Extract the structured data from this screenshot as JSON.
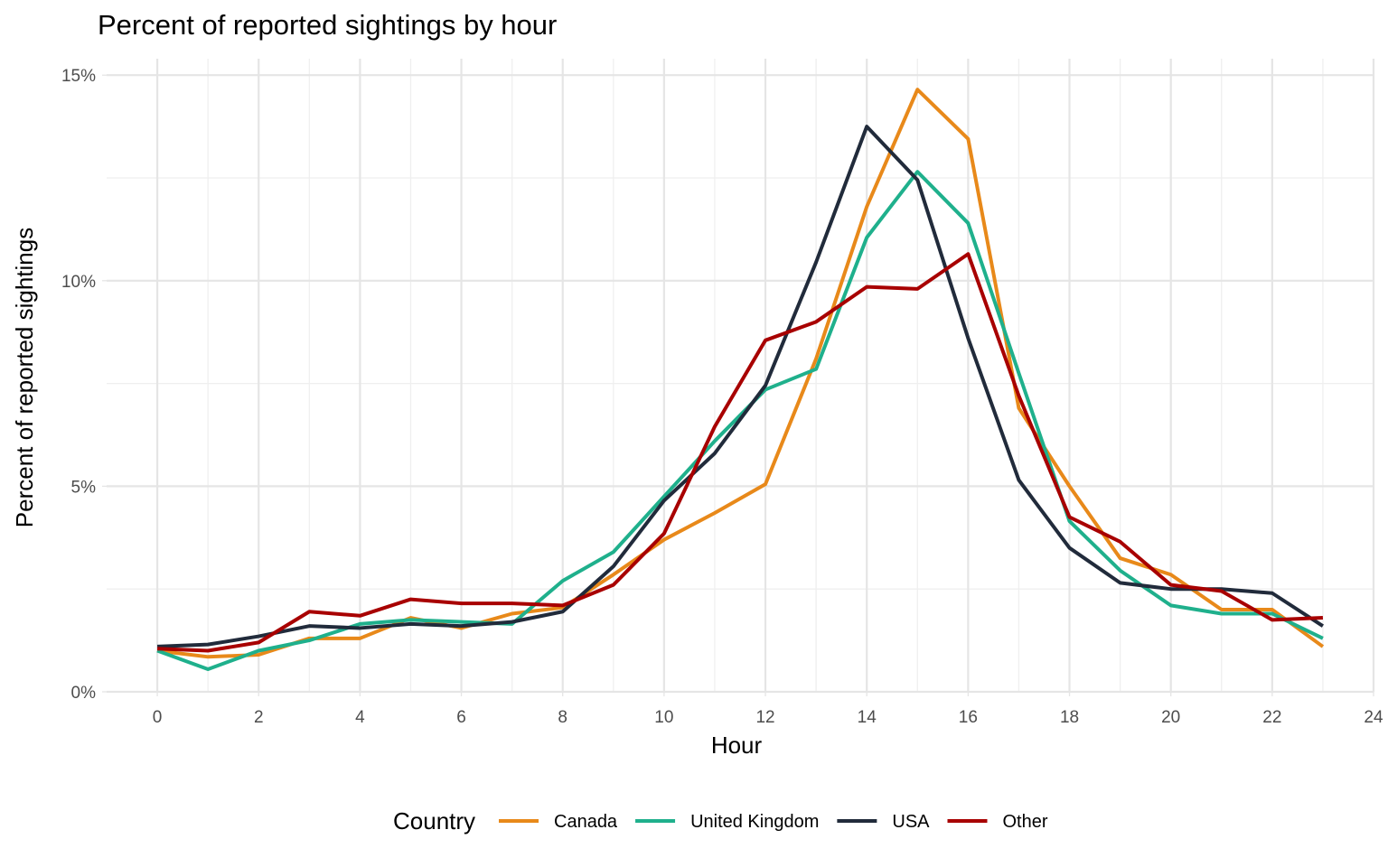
{
  "chart_data": {
    "type": "line",
    "title": "Percent of reported sightings by hour",
    "xlabel": "Hour",
    "ylabel": "Percent of reported sightings",
    "x": [
      0,
      1,
      2,
      3,
      4,
      5,
      6,
      7,
      8,
      9,
      10,
      11,
      12,
      13,
      14,
      15,
      16,
      17,
      18,
      19,
      20,
      21,
      22,
      23
    ],
    "xlim": [
      -1,
      24
    ],
    "ylim": [
      0,
      15
    ],
    "x_ticks": [
      "0",
      "2",
      "4",
      "6",
      "8",
      "10",
      "12",
      "14",
      "16",
      "18",
      "20",
      "22",
      "24"
    ],
    "y_ticks": [
      "0%",
      "5%",
      "10%",
      "15%"
    ],
    "grid": true,
    "legend": {
      "title": "Country",
      "position": "bottom"
    },
    "series": [
      {
        "name": "Canada",
        "color": "#E8891A",
        "values": [
          1.0,
          0.85,
          0.9,
          1.3,
          1.3,
          1.8,
          1.55,
          1.9,
          2.05,
          2.85,
          3.7,
          4.35,
          5.05,
          8.1,
          11.8,
          14.65,
          13.45,
          6.9,
          5.0,
          3.25,
          2.85,
          2.0,
          2.0,
          1.1
        ]
      },
      {
        "name": "United Kingdom",
        "color": "#1FB08C",
        "values": [
          1.0,
          0.55,
          1.0,
          1.25,
          1.65,
          1.75,
          1.7,
          1.65,
          2.7,
          3.4,
          4.75,
          6.1,
          7.35,
          7.85,
          11.05,
          12.65,
          11.4,
          7.75,
          4.15,
          2.95,
          2.1,
          1.9,
          1.9,
          1.3
        ]
      },
      {
        "name": "USA",
        "color": "#212B3B",
        "values": [
          1.1,
          1.15,
          1.35,
          1.6,
          1.55,
          1.65,
          1.6,
          1.7,
          1.95,
          3.05,
          4.65,
          5.8,
          7.45,
          10.45,
          13.75,
          12.45,
          8.6,
          5.15,
          3.5,
          2.65,
          2.5,
          2.5,
          2.4,
          1.6
        ]
      },
      {
        "name": "Other",
        "color": "#A80000",
        "values": [
          1.05,
          1.0,
          1.2,
          1.95,
          1.85,
          2.25,
          2.15,
          2.15,
          2.1,
          2.6,
          3.85,
          6.45,
          8.55,
          9.0,
          9.85,
          9.8,
          10.65,
          7.2,
          4.25,
          3.65,
          2.6,
          2.45,
          1.75,
          1.8
        ]
      }
    ]
  }
}
